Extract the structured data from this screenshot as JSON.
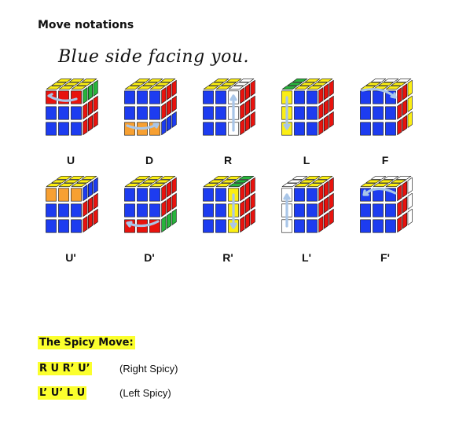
{
  "heading": "Move notations",
  "handwritten_note": "Blue side facing you.",
  "colors": {
    "blue": "#1d3cf0",
    "red": "#e8130e",
    "yellow": "#fbee14",
    "green": "#27b43c",
    "white": "#ffffff",
    "orange": "#f7a032",
    "arrow": "#a9c6e8",
    "highlight": "#fbff2d"
  },
  "moves": [
    {
      "label": "U",
      "icon": "cube-u-move-icon"
    },
    {
      "label": "D",
      "icon": "cube-d-move-icon"
    },
    {
      "label": "R",
      "icon": "cube-r-move-icon"
    },
    {
      "label": "L",
      "icon": "cube-l-move-icon"
    },
    {
      "label": "F",
      "icon": "cube-f-move-icon"
    },
    {
      "label": "U'",
      "icon": "cube-u-prime-move-icon"
    },
    {
      "label": "D'",
      "icon": "cube-d-prime-move-icon"
    },
    {
      "label": "R'",
      "icon": "cube-r-prime-move-icon"
    },
    {
      "label": "L'",
      "icon": "cube-l-prime-move-icon"
    },
    {
      "label": "F'",
      "icon": "cube-f-prime-move-icon"
    }
  ],
  "spicy": {
    "title": "The Spicy Move:",
    "algorithms": [
      {
        "alg": "R U R’ U’",
        "note": "(Right Spicy)"
      },
      {
        "alg": "L’ U’ L U",
        "note": "(Left Spicy)"
      }
    ]
  }
}
